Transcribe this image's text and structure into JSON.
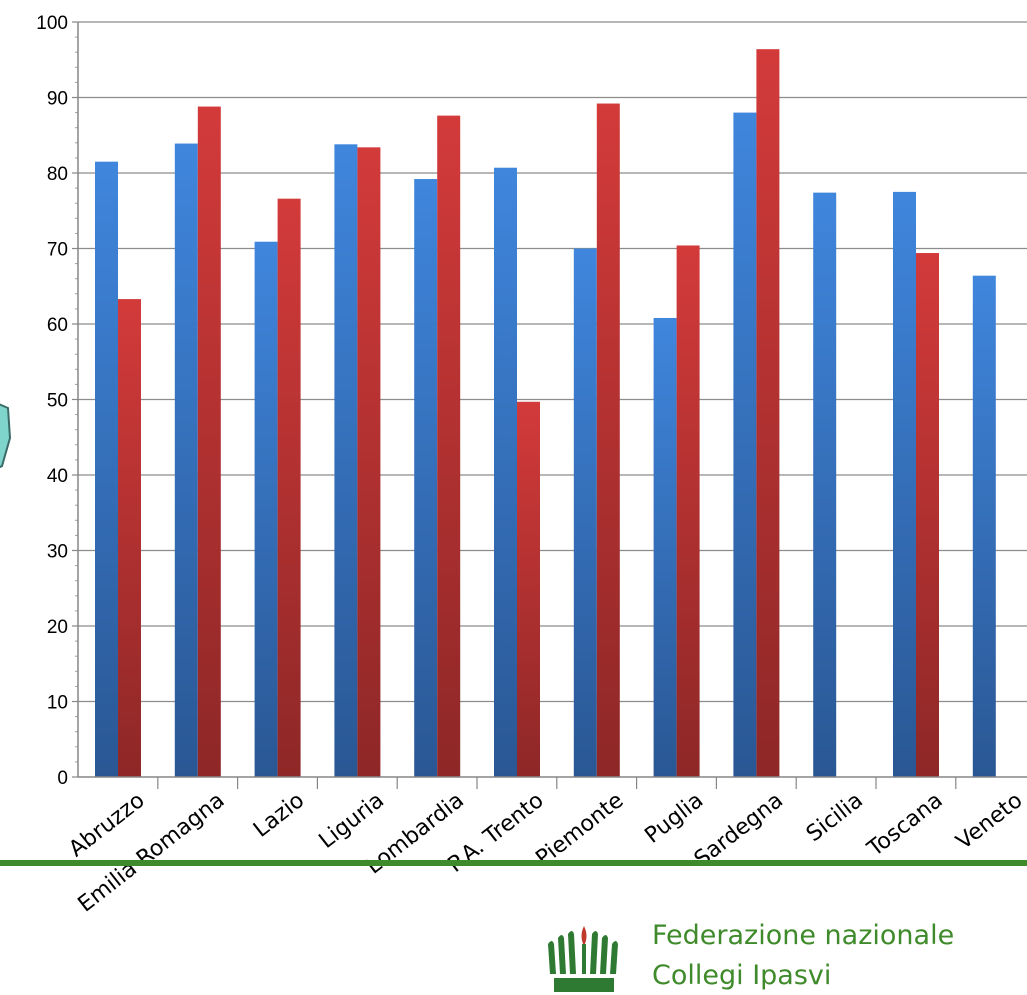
{
  "chart_data": {
    "type": "bar",
    "categories": [
      "Abruzzo",
      "Emilia Romagna",
      "Lazio",
      "Liguria",
      "Lombardia",
      "P.A. Trento",
      "Piemonte",
      "Puglia",
      "Sardegna",
      "Sicilia",
      "Toscana",
      "Veneto"
    ],
    "series": [
      {
        "values": [
          81.5,
          83.9,
          70.9,
          83.8,
          79.2,
          80.7,
          70.0,
          60.8,
          88.0,
          77.4,
          77.5,
          66.4
        ]
      },
      {
        "values": [
          63.3,
          88.8,
          76.6,
          83.4,
          87.6,
          null,
          89.2,
          70.4,
          96.4,
          null,
          69.4,
          null
        ]
      }
    ],
    "series_patch": {
      "5": 49.7
    },
    "ylim": [
      0,
      100
    ],
    "yticks": [
      "0",
      "10",
      "20",
      "30",
      "40",
      "50",
      "60",
      "70",
      "80",
      "90",
      "100"
    ],
    "grid": true,
    "colors": {
      "series1": "#3a7bd5",
      "series2": "#cc3535",
      "grid": "#8c8c8c"
    }
  },
  "footer": {
    "org_line1": "Federazione nazionale",
    "org_line2": "Collegi Ipasvi",
    "rule_color": "#3f8a2a",
    "logo_icon": "ipasvi-logo-icon"
  }
}
